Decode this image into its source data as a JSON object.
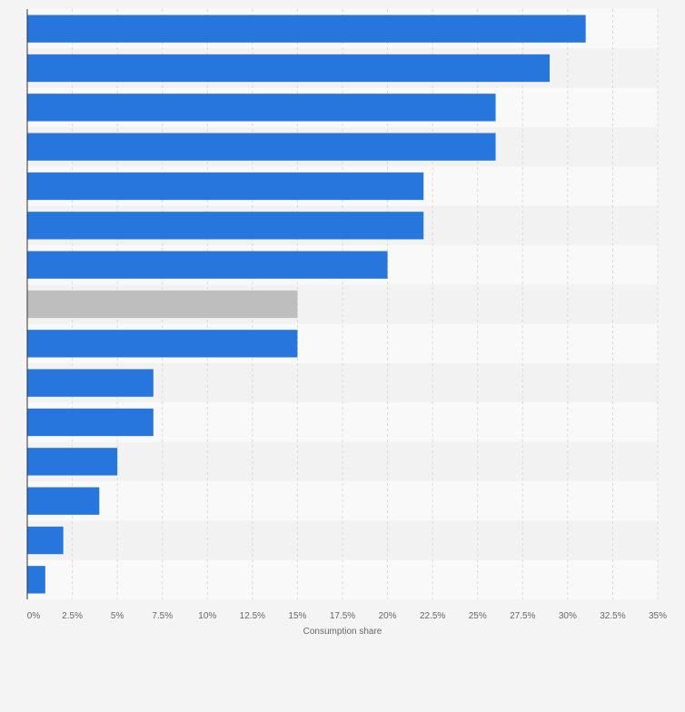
{
  "chart_data": {
    "type": "bar",
    "orientation": "horizontal",
    "title": "",
    "xlabel": "Consumption share",
    "ylabel": "",
    "xlim": [
      0,
      35
    ],
    "x_ticks": [
      0,
      2.5,
      5,
      7.5,
      10,
      12.5,
      15,
      17.5,
      20,
      22.5,
      25,
      27.5,
      30,
      32.5,
      35
    ],
    "x_tick_labels": [
      "0%",
      "2.5%",
      "5%",
      "7.5%",
      "10%",
      "12.5%",
      "15%",
      "17.5%",
      "20%",
      "22.5%",
      "25%",
      "27.5%",
      "30%",
      "32.5%",
      "35%"
    ],
    "values": [
      31,
      29,
      26,
      26,
      22,
      22,
      20,
      15,
      15,
      7,
      7,
      5,
      4,
      2,
      1
    ],
    "highlight_index": 7,
    "grid": true,
    "legend": "none",
    "colors": {
      "bar": "#2776dd",
      "highlight": "#bebebe",
      "band_dark": "#f2f2f2",
      "band_light": "#f9f9f9",
      "grid": "#dadada",
      "axis": "#333333",
      "tick_text": "#666666",
      "background": "#f4f4f4"
    }
  }
}
